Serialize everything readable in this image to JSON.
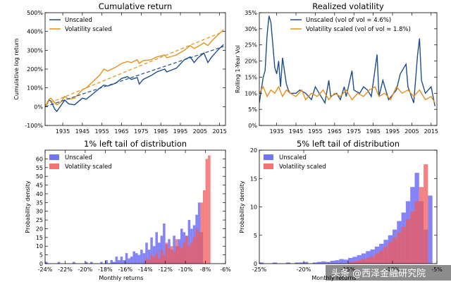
{
  "colors": {
    "unscaled": "#1f4e8c",
    "scaled": "#e8901c",
    "unscaled_hist": "#5b5bf5",
    "scaled_hist": "#f25a5a",
    "overlap_hist": "#b0306a"
  },
  "watermark": "头条 @西泽金融研究院",
  "chart_data": [
    {
      "id": "cumret",
      "type": "line",
      "title": "Cumulative return",
      "xlabel": "",
      "ylabel": "Cumulative log return",
      "xlim": [
        1926,
        2018
      ],
      "ylim": [
        -100,
        500
      ],
      "xticks": [
        1935,
        1945,
        1955,
        1965,
        1975,
        1985,
        1995,
        2005,
        2015
      ],
      "yticks": [
        -100,
        0,
        100,
        200,
        300,
        400,
        500
      ],
      "ytick_labels": [
        "-100%",
        "0%",
        "100%",
        "200%",
        "300%",
        "400%",
        "500%"
      ],
      "legend_position": "top-left",
      "series": [
        {
          "name": "Unscaled",
          "color_key": "unscaled",
          "x": [
            1926,
            1928,
            1929,
            1931,
            1932,
            1934,
            1936,
            1938,
            1941,
            1945,
            1947,
            1950,
            1954,
            1956,
            1958,
            1962,
            1965,
            1968,
            1970,
            1973,
            1974,
            1976,
            1980,
            1983,
            1987,
            1988,
            1993,
            1997,
            2000,
            2002,
            2004,
            2007,
            2009,
            2011,
            2014,
            2017
          ],
          "y": [
            0,
            35,
            30,
            -15,
            -25,
            5,
            35,
            15,
            10,
            45,
            40,
            65,
            100,
            115,
            110,
            125,
            150,
            160,
            145,
            155,
            120,
            145,
            165,
            185,
            200,
            185,
            205,
            250,
            265,
            235,
            260,
            285,
            235,
            265,
            300,
            330
          ]
        },
        {
          "name": "Volatility scaled",
          "color_key": "scaled",
          "x": [
            1926,
            1928,
            1929,
            1931,
            1932,
            1934,
            1936,
            1938,
            1941,
            1945,
            1947,
            1950,
            1954,
            1956,
            1958,
            1962,
            1965,
            1968,
            1970,
            1973,
            1974,
            1976,
            1980,
            1983,
            1987,
            1988,
            1993,
            1997,
            2000,
            2002,
            2004,
            2007,
            2009,
            2011,
            2014,
            2017
          ],
          "y": [
            0,
            40,
            45,
            20,
            10,
            25,
            55,
            40,
            45,
            90,
            100,
            130,
            170,
            200,
            190,
            210,
            230,
            240,
            235,
            250,
            230,
            245,
            250,
            265,
            275,
            260,
            275,
            300,
            325,
            310,
            320,
            340,
            325,
            350,
            380,
            410
          ]
        },
        {
          "name": "",
          "color_key": "unscaled",
          "dashed": true,
          "x": [
            1926,
            2017
          ],
          "y": [
            0,
            320
          ]
        },
        {
          "name": "",
          "color_key": "scaled",
          "dashed": true,
          "x": [
            1926,
            2017
          ],
          "y": [
            10,
            400
          ]
        }
      ]
    },
    {
      "id": "realvol",
      "type": "line",
      "title": "Realized volatility",
      "xlabel": "",
      "ylabel": "Rolling 1-Year Vol",
      "xlim": [
        1926,
        2018
      ],
      "ylim": [
        0,
        35
      ],
      "xticks": [
        1935,
        1945,
        1955,
        1965,
        1975,
        1985,
        1995,
        2005,
        2015
      ],
      "yticks": [
        0,
        5,
        10,
        15,
        20,
        25,
        30,
        35
      ],
      "ytick_labels": [
        "0%",
        "5%",
        "10%",
        "15%",
        "20%",
        "25%",
        "30%",
        "35%"
      ],
      "legend_position": "top-right",
      "series": [
        {
          "name": "Unscaled (vol of vol = 4.6%)",
          "color_key": "unscaled",
          "x": [
            1926,
            1928,
            1929,
            1930,
            1931,
            1932,
            1933,
            1934,
            1935,
            1936,
            1937,
            1938,
            1939,
            1940,
            1941,
            1942,
            1945,
            1947,
            1950,
            1953,
            1955,
            1957,
            1960,
            1962,
            1963,
            1966,
            1968,
            1970,
            1971,
            1974,
            1975,
            1978,
            1980,
            1982,
            1984,
            1987,
            1988,
            1990,
            1993,
            1997,
            1999,
            2001,
            2002,
            2003,
            2006,
            2008,
            2009,
            2010,
            2012,
            2015,
            2017
          ],
          "y": [
            7,
            15,
            17,
            28,
            34,
            32,
            25,
            18,
            16,
            20,
            12,
            21,
            17,
            13,
            11,
            10,
            10,
            11,
            10,
            8,
            12,
            10,
            7,
            14,
            9,
            10,
            8,
            12,
            9,
            17,
            11,
            10,
            12,
            11,
            9,
            22,
            9,
            14,
            8,
            11,
            16,
            18,
            19,
            12,
            7,
            22,
            27,
            14,
            10,
            12,
            6
          ]
        },
        {
          "name": "Volatility scaled (vol of vol = 1.8%)",
          "color_key": "scaled",
          "x": [
            1926,
            1928,
            1930,
            1932,
            1934,
            1936,
            1938,
            1940,
            1942,
            1945,
            1948,
            1950,
            1953,
            1956,
            1959,
            1962,
            1965,
            1968,
            1971,
            1974,
            1977,
            1980,
            1983,
            1986,
            1988,
            1991,
            1994,
            1997,
            2000,
            2003,
            2006,
            2009,
            2012,
            2015,
            2017
          ],
          "y": [
            10,
            12,
            9,
            11,
            10,
            12,
            9,
            11,
            10,
            9,
            11,
            8,
            10,
            9,
            11,
            8,
            10,
            9,
            11,
            8,
            10,
            9,
            11,
            12,
            9,
            10,
            8,
            12,
            10,
            11,
            9,
            11,
            8,
            9,
            7
          ]
        }
      ]
    },
    {
      "id": "tail1",
      "type": "bar",
      "title": "1% left tail of distribution",
      "xlabel": "Monthly returns",
      "ylabel": "Probability density",
      "xlim": [
        -24,
        -6
      ],
      "ylim": [
        0,
        65
      ],
      "xticks": [
        -24,
        -22,
        -20,
        -18,
        -16,
        -14,
        -12,
        -10,
        -8,
        -6
      ],
      "xtick_labels": [
        "-24%",
        "-22%",
        "-20%",
        "-18%",
        "-16%",
        "-14%",
        "-12%",
        "-10%",
        "-8%",
        "-6%"
      ],
      "yticks": [
        0,
        5,
        10,
        15,
        20,
        25,
        30,
        35,
        40,
        45,
        50,
        55,
        60
      ],
      "legend_position": "top-left",
      "series": [
        {
          "name": "Unscaled",
          "color_key": "unscaled_hist",
          "edges": [
            -24,
            -23.75,
            -23.5,
            -23.25,
            -23,
            -22.75,
            -22.5,
            -22.25,
            -22,
            -21.75,
            -21.5,
            -21.25,
            -21,
            -20.75,
            -20.5,
            -20.25,
            -20,
            -19.75,
            -19.5,
            -19.25,
            -19,
            -18.75,
            -18.5,
            -18.25,
            -18,
            -17.75,
            -17.5,
            -17.25,
            -17,
            -16.75,
            -16.5,
            -16.25,
            -16,
            -15.75,
            -15.5,
            -15.25,
            -15,
            -14.75,
            -14.5,
            -14.25,
            -14,
            -13.75,
            -13.5,
            -13.25,
            -13,
            -12.75,
            -12.5,
            -12.25,
            -12,
            -11.75,
            -11.5,
            -11.25,
            -11,
            -10.75,
            -10.5,
            -10.25,
            -10,
            -9.75,
            -9.5,
            -9.25,
            -9,
            -8.75,
            -8.5,
            -8.25
          ],
          "values": [
            1,
            0,
            0,
            0,
            0,
            1,
            0,
            0,
            0,
            0,
            0,
            1,
            0,
            0,
            0,
            0,
            1,
            0,
            1,
            0,
            0,
            0,
            1,
            0,
            2,
            0,
            2,
            1,
            4,
            2,
            4,
            2,
            6,
            3,
            4,
            7,
            6,
            5,
            8,
            6,
            12,
            8,
            15,
            10,
            18,
            12,
            16,
            23,
            11,
            14,
            8,
            16,
            10,
            14,
            20,
            18,
            16,
            25,
            20,
            22,
            28,
            35,
            18
          ]
        },
        {
          "name": "Volatility scaled",
          "color_key": "scaled_hist",
          "edges": [
            -14,
            -13.75,
            -13.5,
            -13.25,
            -13,
            -12.75,
            -12.5,
            -12.25,
            -12,
            -11.75,
            -11.5,
            -11.25,
            -11,
            -10.75,
            -10.5,
            -10.25,
            -10,
            -9.75,
            -9.5,
            -9.25,
            -9,
            -8.75,
            -8.5,
            -8.25,
            -8,
            -7.75,
            -7.5
          ],
          "values": [
            3,
            2,
            5,
            4,
            6,
            3,
            8,
            5,
            12,
            9,
            10,
            7,
            14,
            10,
            9,
            12,
            16,
            10,
            12,
            15,
            20,
            18,
            35,
            42,
            60,
            62
          ]
        }
      ]
    },
    {
      "id": "tail5",
      "type": "bar",
      "title": "5% left tail of distribution",
      "xlabel": "Monthly returns",
      "ylabel": "Probability density",
      "xlim": [
        -25,
        -5
      ],
      "ylim": [
        0,
        20
      ],
      "xticks": [
        -25,
        -20,
        -15,
        -10,
        -5
      ],
      "xtick_labels": [
        "-25%",
        "-20%",
        "-15%",
        "-10%",
        "-5%"
      ],
      "yticks": [
        0,
        5,
        10,
        15,
        20
      ],
      "legend_position": "top-left",
      "series": [
        {
          "name": "Unscaled",
          "color_key": "unscaled_hist",
          "edges": [
            -25,
            -24.5,
            -24,
            -23.5,
            -23,
            -22.5,
            -22,
            -21.5,
            -21,
            -20.5,
            -20,
            -19.5,
            -19,
            -18.5,
            -18,
            -17.5,
            -17,
            -16.5,
            -16,
            -15.5,
            -15,
            -14.5,
            -14,
            -13.5,
            -13,
            -12.5,
            -12,
            -11.5,
            -11,
            -10.5,
            -10,
            -9.5,
            -9,
            -8.5,
            -8,
            -7.5,
            -7,
            -6.5,
            -6,
            -5.5
          ],
          "values": [
            0.2,
            0,
            0,
            0.2,
            0,
            0,
            0.2,
            0,
            0.2,
            0.2,
            0.3,
            0,
            0.2,
            0.3,
            0.4,
            0.3,
            0.5,
            0.6,
            0.8,
            0.7,
            1.0,
            1.2,
            1.5,
            1.8,
            2.2,
            2.5,
            3.0,
            3.5,
            4.2,
            5.0,
            6.0,
            7.5,
            9.0,
            11.0,
            13.5,
            16.0,
            11.0,
            6.0,
            12.0
          ]
        },
        {
          "name": "Volatility scaled",
          "color_key": "scaled_hist",
          "edges": [
            -15,
            -14.5,
            -14,
            -13.5,
            -13,
            -12.5,
            -12,
            -11.5,
            -11,
            -10.5,
            -10,
            -9.5,
            -9,
            -8.5,
            -8,
            -7.5,
            -7,
            -6.5,
            -6
          ],
          "values": [
            0.3,
            0.4,
            0.6,
            0.8,
            1.0,
            1.3,
            1.8,
            2.3,
            3.0,
            3.8,
            4.6,
            5.5,
            6.5,
            7.8,
            9.2,
            11.0,
            13.5,
            17.5
          ]
        }
      ]
    }
  ]
}
